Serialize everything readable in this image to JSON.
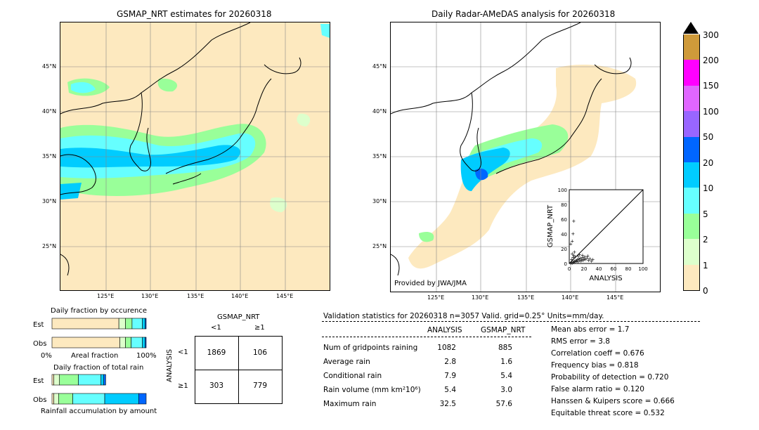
{
  "left_map": {
    "title": "GSMAP_NRT estimates for 20260318",
    "lat_labels": [
      "45°N",
      "40°N",
      "35°N",
      "30°N",
      "25°N"
    ],
    "lon_labels": [
      "125°E",
      "130°E",
      "135°E",
      "140°E",
      "145°E"
    ]
  },
  "right_map": {
    "title": "Daily Radar-AMeDAS analysis for 20260318",
    "lat_labels": [
      "45°N",
      "40°N",
      "35°N",
      "30°N",
      "25°N"
    ],
    "lon_labels": [
      "125°E",
      "130°E",
      "135°E",
      "140°E",
      "145°E"
    ],
    "credit": "Provided by JWA/JMA"
  },
  "colorbar": {
    "labels": [
      "300",
      "200",
      "150",
      "100",
      "50",
      "20",
      "10",
      "5",
      "2",
      "1",
      "0"
    ],
    "colors": [
      "#cf9a3a",
      "#ff00ff",
      "#e066ff",
      "#9966ff",
      "#0066ff",
      "#00ccff",
      "#66ffff",
      "#99ff99",
      "#ddffcc",
      "#fde9bf"
    ]
  },
  "scatter": {
    "xlabel": "ANALYSIS",
    "ylabel": "GSMAP_NRT",
    "ticks": [
      "0",
      "20",
      "40",
      "60",
      "80",
      "100"
    ]
  },
  "fraction_occurrence": {
    "title": "Daily fraction by occurence",
    "rows": [
      "Est",
      "Obs"
    ],
    "axis_left": "0%",
    "axis_mid": "Areal fraction",
    "axis_right": "100%"
  },
  "fraction_total": {
    "title": "Daily fraction of total rain",
    "rows": [
      "Est",
      "Obs"
    ],
    "axis": "Rainfall accumulation by amount"
  },
  "contingency": {
    "title": "GSMAP_NRT",
    "col_labels": [
      "<1",
      "≥1"
    ],
    "row_axis": "ANALYSIS",
    "row_labels": [
      "<1",
      "≥1"
    ],
    "cells": [
      [
        "1869",
        "106"
      ],
      [
        "303",
        "779"
      ]
    ]
  },
  "validation": {
    "header": "Validation statistics for 20260318  n=3057 Valid. grid=0.25° Units=mm/day.",
    "col_analysis": "ANALYSIS",
    "col_gsmap": "GSMAP_NRT",
    "rows": [
      {
        "label": "Num of gridpoints raining",
        "analysis": "1082",
        "gsmap": "885"
      },
      {
        "label": "Average rain",
        "analysis": "2.8",
        "gsmap": "1.6"
      },
      {
        "label": "Conditional rain",
        "analysis": "7.9",
        "gsmap": "5.4"
      },
      {
        "label": "Rain volume (mm km²10⁶)",
        "analysis": "5.4",
        "gsmap": "3.0"
      },
      {
        "label": "Maximum rain",
        "analysis": "32.5",
        "gsmap": "57.6"
      }
    ],
    "scores": [
      "Mean abs error =    1.7",
      "RMS error =    3.8",
      "Correlation coeff =  0.676",
      "Frequency bias =  0.818",
      "Probability of detection =  0.720",
      "False alarm ratio =  0.120",
      "Hanssen & Kuipers score =  0.666",
      "Equitable threat score =  0.532"
    ]
  },
  "chart_data": [
    {
      "type": "scatter",
      "title": "",
      "xlabel": "ANALYSIS",
      "ylabel": "GSMAP_NRT",
      "xlim": [
        0,
        100
      ],
      "ylim": [
        0,
        100
      ],
      "points": [
        [
          2,
          1
        ],
        [
          3,
          2
        ],
        [
          4,
          1
        ],
        [
          5,
          3
        ],
        [
          6,
          2
        ],
        [
          7,
          4
        ],
        [
          8,
          3
        ],
        [
          9,
          5
        ],
        [
          10,
          4
        ],
        [
          11,
          6
        ],
        [
          12,
          3
        ],
        [
          13,
          7
        ],
        [
          14,
          5
        ],
        [
          15,
          8
        ],
        [
          16,
          4
        ],
        [
          17,
          6
        ],
        [
          18,
          9
        ],
        [
          19,
          5
        ],
        [
          20,
          7
        ],
        [
          22,
          6
        ],
        [
          24,
          8
        ],
        [
          26,
          5
        ],
        [
          28,
          7
        ],
        [
          30,
          4
        ],
        [
          32,
          6
        ],
        [
          3,
          6
        ],
        [
          5,
          9
        ],
        [
          6,
          12
        ],
        [
          4,
          14
        ],
        [
          7,
          16
        ],
        [
          8,
          10
        ],
        [
          2,
          27
        ],
        [
          4,
          31
        ],
        [
          5,
          41
        ],
        [
          6,
          58
        ],
        [
          12,
          11
        ],
        [
          14,
          13
        ],
        [
          18,
          12
        ],
        [
          21,
          10
        ],
        [
          25,
          11
        ]
      ]
    },
    {
      "type": "bar",
      "title": "Daily fraction by occurence",
      "categories": [
        "Est",
        "Obs"
      ],
      "series": [
        {
          "values": [
            0.71,
            0.72
          ]
        },
        {
          "values": [
            0.07,
            0.06
          ]
        },
        {
          "values": [
            0.07,
            0.06
          ]
        },
        {
          "values": [
            0.11,
            0.12
          ]
        },
        {
          "values": [
            0.03,
            0.03
          ]
        },
        {
          "values": [
            0.01,
            0.01
          ]
        }
      ]
    },
    {
      "type": "bar",
      "title": "Daily fraction of total rain",
      "categories": [
        "Est",
        "Obs"
      ],
      "series": [
        {
          "values": [
            0.02,
            0.02
          ]
        },
        {
          "values": [
            0.06,
            0.05
          ]
        },
        {
          "values": [
            0.2,
            0.15
          ]
        },
        {
          "values": [
            0.24,
            0.34
          ]
        },
        {
          "values": [
            0.03,
            0.36
          ]
        },
        {
          "values": [
            0.02,
            0.08
          ]
        }
      ]
    }
  ]
}
